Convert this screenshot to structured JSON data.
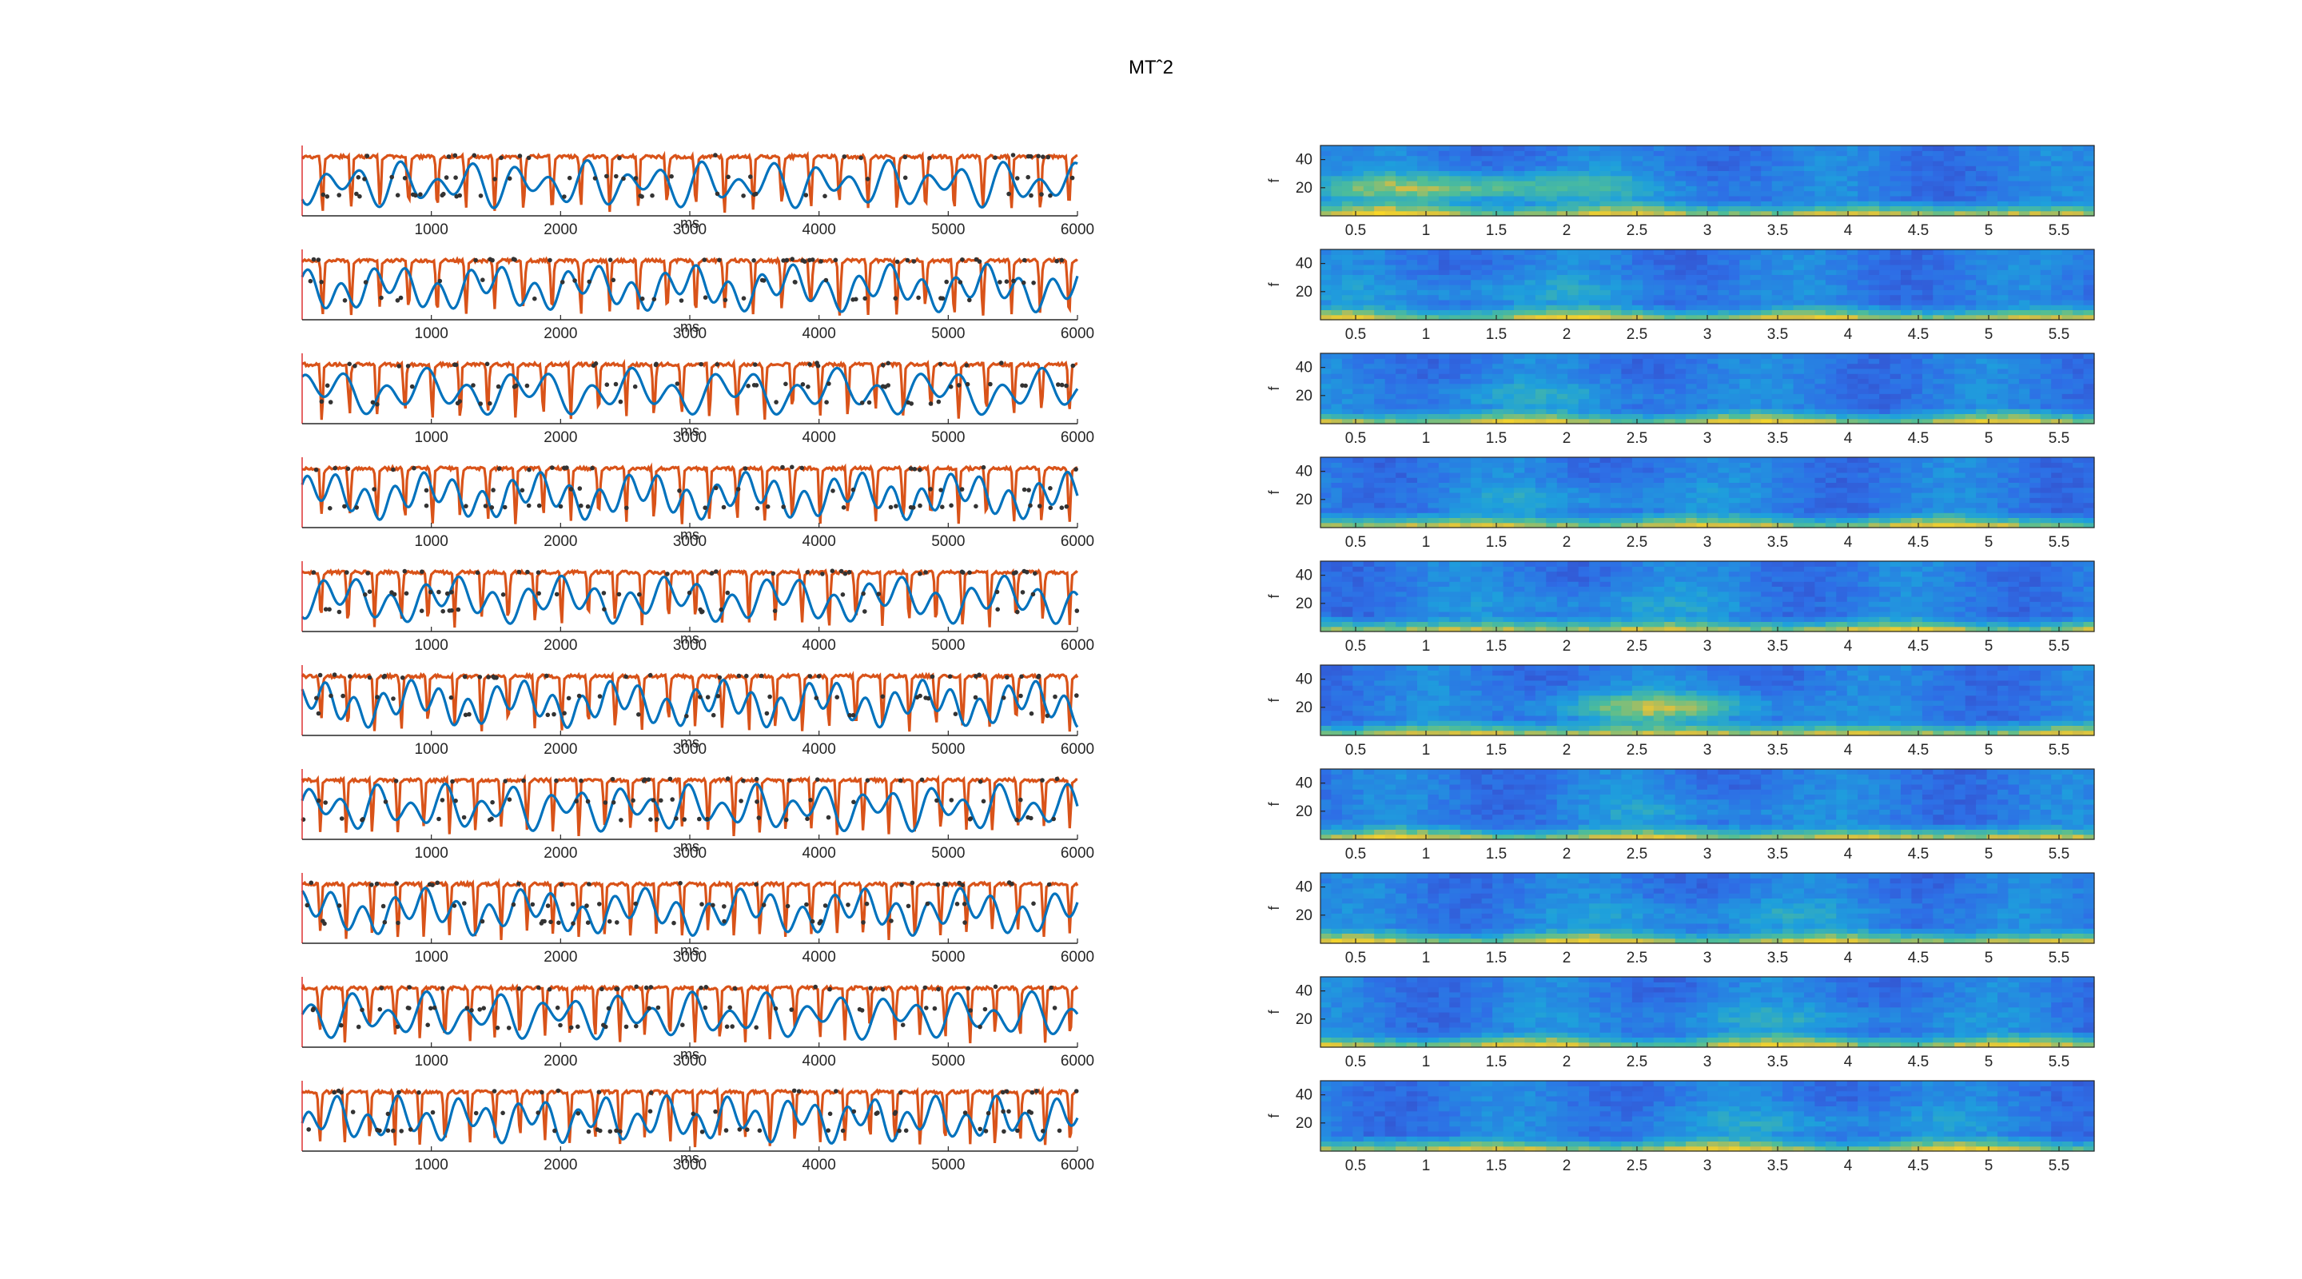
{
  "figure": {
    "title": "MTˆ2"
  },
  "chart_data": [
    {
      "type": "line",
      "panel_group": "left-traces",
      "trials": 10,
      "xlabel": "ms",
      "xlim": [
        0,
        6000
      ],
      "xticks": [
        1000,
        2000,
        3000,
        4000,
        5000,
        6000
      ],
      "series": [
        {
          "color": "#D95319",
          "style": "square-like oscillation"
        },
        {
          "color": "#0072BD",
          "style": "smooth oscillation"
        },
        {
          "color": "#333333",
          "style": "dots"
        }
      ],
      "grid": false
    },
    {
      "type": "heatmap",
      "panel_group": "right-spectrograms",
      "trials": 10,
      "ylabel": "f",
      "yticks": [
        20,
        40
      ],
      "ylim": [
        0,
        50
      ],
      "xlim": [
        0.25,
        5.75
      ],
      "xticks": [
        0.5,
        1,
        1.5,
        2,
        2.5,
        3,
        3.5,
        4,
        4.5,
        5,
        5.5
      ],
      "colormap": "parula",
      "colors": {
        "low": "#3E26A8",
        "mid": "#2E8DD8",
        "high": "#F9C532"
      }
    }
  ]
}
